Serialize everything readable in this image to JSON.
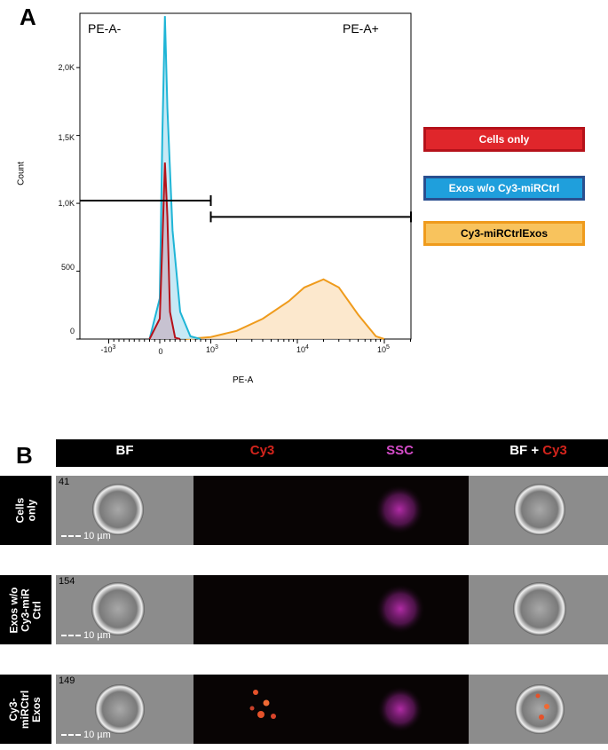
{
  "panel_a": {
    "letter": "A",
    "gate_left_label": "PE-A-",
    "gate_right_label": "PE-A+",
    "legend": [
      {
        "label": "Cells only",
        "fill": "#e0262b",
        "border": "#b5121a",
        "text": "#ffffff"
      },
      {
        "label": "Exos w/o Cy3-miRCtrl",
        "fill": "#1f9fdc",
        "border": "#2a4f8f",
        "text": "#ffffff"
      },
      {
        "label": "Cy3-miRCtrlExos",
        "fill": "#f8c35d",
        "border": "#ef9b1c",
        "text": "#000000"
      }
    ]
  },
  "chart_data": {
    "type": "area",
    "title": "",
    "xlabel": "PE-A",
    "ylabel": "Count",
    "x_scale": "biexponential",
    "x_ticks": [
      "-10^3",
      "0",
      "10^3",
      "10^4",
      "10^5"
    ],
    "y_ticks": [
      "0",
      "500",
      "1,0K",
      "1,5K",
      "2,0K"
    ],
    "ylim": [
      0,
      2400
    ],
    "gates": [
      {
        "name": "PE-A-",
        "x_range": [
          "-10^3 (left edge)",
          "10^3"
        ],
        "y": 1020
      },
      {
        "name": "PE-A+",
        "x_range": [
          "10^3",
          "above 10^5"
        ],
        "y": 900
      }
    ],
    "series": [
      {
        "name": "Cells only",
        "color": "#b5121a",
        "fill": "#c7b8c8",
        "x": [
          -200,
          0,
          50,
          100,
          150,
          200,
          300,
          400
        ],
        "values": [
          0,
          150,
          700,
          1300,
          900,
          200,
          10,
          0
        ]
      },
      {
        "name": "Exos w/o Cy3-miRCtrl",
        "color": "#1fb5d6",
        "fill": "#b9e3f3",
        "x": [
          -200,
          0,
          50,
          100,
          150,
          250,
          400,
          600,
          800
        ],
        "values": [
          0,
          300,
          1500,
          2380,
          1700,
          800,
          200,
          20,
          0
        ]
      },
      {
        "name": "Cy3-miRCtrlExos",
        "color": "#ef9b1c",
        "fill": "#fbe2c0",
        "x": [
          500,
          1000,
          2000,
          4000,
          8000,
          12000,
          20000,
          30000,
          50000,
          80000,
          100000
        ],
        "values": [
          0,
          15,
          60,
          150,
          280,
          380,
          440,
          380,
          180,
          20,
          0
        ]
      }
    ]
  },
  "panel_b": {
    "letter": "B",
    "headers": [
      {
        "text": "BF",
        "color": "#ffffff"
      },
      {
        "text": "Cy3",
        "color": "#d3241c"
      },
      {
        "text": "SSC",
        "color": "#d24bc6"
      },
      {
        "text_white": "BF + ",
        "text_red": "Cy3"
      }
    ],
    "scale_label": "10 µm",
    "rows": [
      {
        "label": "Cells\nonly",
        "cell_number": "41"
      },
      {
        "label": "Exos w/o\nCy3-miR\nCtrl",
        "cell_number": "154"
      },
      {
        "label": "Cy3-\nmiRCtrl\nExos",
        "cell_number": "149"
      }
    ]
  }
}
